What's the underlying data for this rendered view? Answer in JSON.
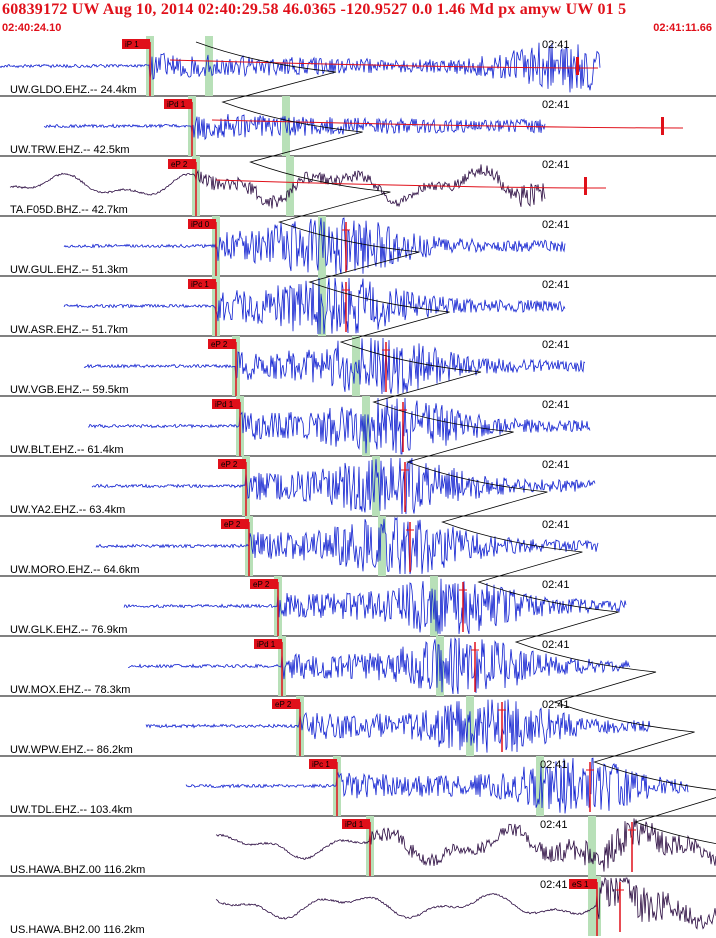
{
  "header": {
    "title": "60839172 UW Aug 10, 2014 02:40:29.58   46.0365 -120.9527  0.0 1.46 Md px amyw UW 01   5",
    "time_start": "02:40:24.10",
    "time_end": "02:41:11.66"
  },
  "colors": {
    "header": "#e0101a",
    "trace_short_period": "#1020d0",
    "trace_broadband": "#2a0a40",
    "pick": "#e0101a",
    "window": "#b8e0b8",
    "travel_time_curve": "#000000"
  },
  "chart_data": {
    "type": "line",
    "title": "",
    "time_range": [
      "02:40:24.10",
      "02:41:11.66"
    ],
    "tick_label": "02:41",
    "channels": [
      {
        "label": "UW.GLDO.EHZ.-- 24.4km",
        "network": "UW",
        "station": "GLDO",
        "channel": "EHZ",
        "location": "--",
        "distance_km": 24.4,
        "pick": "iP 1",
        "kind": "short-period"
      },
      {
        "label": "UW.TRW.EHZ.-- 42.5km",
        "network": "UW",
        "station": "TRW",
        "channel": "EHZ",
        "location": "--",
        "distance_km": 42.5,
        "pick": "iPd 1",
        "kind": "short-period"
      },
      {
        "label": "TA.F05D.BHZ.-- 42.7km",
        "network": "TA",
        "station": "F05D",
        "channel": "BHZ",
        "location": "--",
        "distance_km": 42.7,
        "pick": "eP 2",
        "kind": "broadband"
      },
      {
        "label": "UW.GUL.EHZ.-- 51.3km",
        "network": "UW",
        "station": "GUL",
        "channel": "EHZ",
        "location": "--",
        "distance_km": 51.3,
        "pick": "iPd 0",
        "kind": "short-period"
      },
      {
        "label": "UW.ASR.EHZ.-- 51.7km",
        "network": "UW",
        "station": "ASR",
        "channel": "EHZ",
        "location": "--",
        "distance_km": 51.7,
        "pick": "iPc 1",
        "kind": "short-period"
      },
      {
        "label": "UW.VGB.EHZ.-- 59.5km",
        "network": "UW",
        "station": "VGB",
        "channel": "EHZ",
        "location": "--",
        "distance_km": 59.5,
        "pick": "eP 2",
        "kind": "short-period"
      },
      {
        "label": "UW.BLT.EHZ.-- 61.4km",
        "network": "UW",
        "station": "BLT",
        "channel": "EHZ",
        "location": "--",
        "distance_km": 61.4,
        "pick": "iPd 1",
        "kind": "short-period"
      },
      {
        "label": "UW.YA2.EHZ.-- 63.4km",
        "network": "UW",
        "station": "YA2",
        "channel": "EHZ",
        "location": "--",
        "distance_km": 63.4,
        "pick": "eP 2",
        "kind": "short-period"
      },
      {
        "label": "UW.MORO.EHZ.-- 64.6km",
        "network": "UW",
        "station": "MORO",
        "channel": "EHZ",
        "location": "--",
        "distance_km": 64.6,
        "pick": "eP 2",
        "kind": "short-period"
      },
      {
        "label": "UW.GLK.EHZ.-- 76.9km",
        "network": "UW",
        "station": "GLK",
        "channel": "EHZ",
        "location": "--",
        "distance_km": 76.9,
        "pick": "eP 2",
        "kind": "short-period"
      },
      {
        "label": "UW.MOX.EHZ.-- 78.3km",
        "network": "UW",
        "station": "MOX",
        "channel": "EHZ",
        "location": "--",
        "distance_km": 78.3,
        "pick": "iPd 1",
        "kind": "short-period"
      },
      {
        "label": "UW.WPW.EHZ.-- 86.2km",
        "network": "UW",
        "station": "WPW",
        "channel": "EHZ",
        "location": "--",
        "distance_km": 86.2,
        "pick": "eP 2",
        "kind": "short-period"
      },
      {
        "label": "UW.TDL.EHZ.-- 103.4km",
        "network": "UW",
        "station": "TDL",
        "channel": "EHZ",
        "location": "--",
        "distance_km": 103.4,
        "pick": "iPc 1",
        "kind": "short-period"
      },
      {
        "label": "US.HAWA.BHZ.00 116.2km",
        "network": "US",
        "station": "HAWA",
        "channel": "BHZ",
        "location": "00",
        "distance_km": 116.2,
        "pick": "iPd 1",
        "kind": "broadband"
      },
      {
        "label": "US.HAWA.BH2.00 116.2km",
        "network": "US",
        "station": "HAWA",
        "channel": "BH2",
        "location": "00",
        "distance_km": 116.2,
        "pick": "eS 1",
        "kind": "broadband"
      }
    ]
  }
}
